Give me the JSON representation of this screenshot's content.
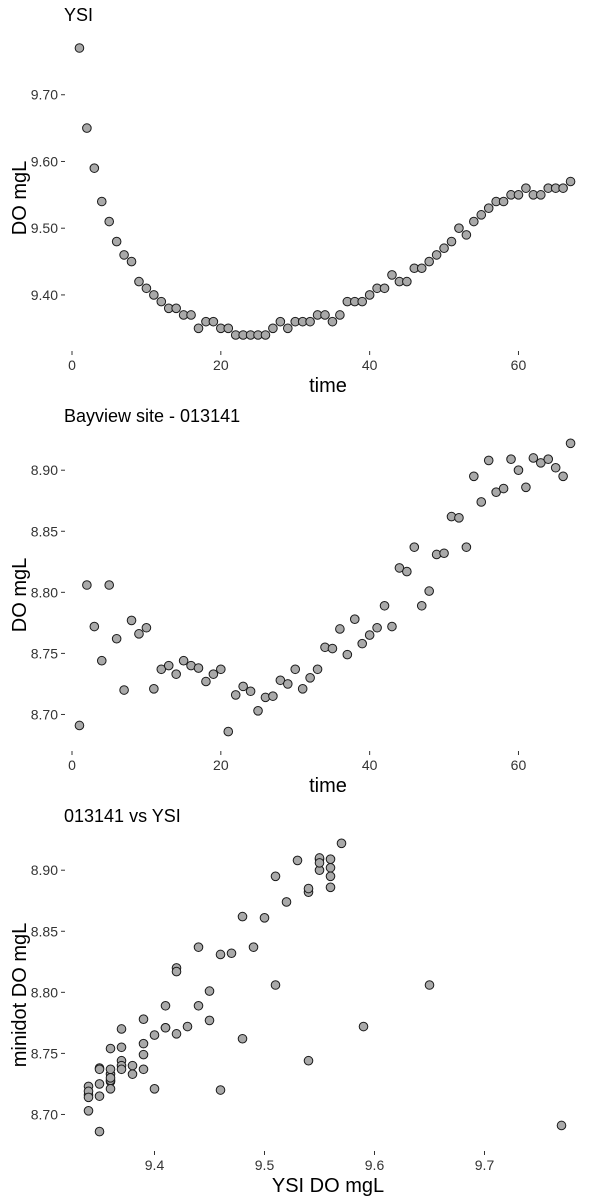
{
  "chart_data": [
    {
      "type": "scatter",
      "title": "YSI",
      "xlabel": "time",
      "ylabel": "DO mgL",
      "xlim": [
        0,
        68
      ],
      "ylim": [
        9.325,
        9.785
      ],
      "xticks": [
        0,
        20,
        40,
        60
      ],
      "yticks": [
        9.4,
        9.5,
        9.6,
        9.7
      ],
      "grid": false,
      "x": [
        1,
        2,
        3,
        4,
        5,
        6,
        7,
        8,
        9,
        10,
        11,
        12,
        13,
        14,
        15,
        16,
        17,
        18,
        19,
        20,
        21,
        22,
        23,
        24,
        25,
        26,
        27,
        28,
        29,
        30,
        31,
        32,
        33,
        34,
        35,
        36,
        37,
        38,
        39,
        40,
        41,
        42,
        43,
        44,
        45,
        46,
        47,
        48,
        49,
        50,
        51,
        52,
        53,
        54,
        55,
        56,
        57,
        58,
        59,
        60,
        61,
        62,
        63,
        64,
        65,
        66,
        67
      ],
      "y": [
        9.77,
        9.65,
        9.59,
        9.54,
        9.51,
        9.48,
        9.46,
        9.45,
        9.42,
        9.41,
        9.4,
        9.39,
        9.38,
        9.38,
        9.37,
        9.37,
        9.35,
        9.36,
        9.36,
        9.35,
        9.35,
        9.34,
        9.34,
        9.34,
        9.34,
        9.34,
        9.35,
        9.36,
        9.35,
        9.36,
        9.36,
        9.36,
        9.37,
        9.37,
        9.36,
        9.37,
        9.39,
        9.39,
        9.39,
        9.4,
        9.41,
        9.41,
        9.43,
        9.42,
        9.42,
        9.44,
        9.44,
        9.45,
        9.46,
        9.47,
        9.48,
        9.5,
        9.49,
        9.51,
        9.52,
        9.53,
        9.54,
        9.54,
        9.55,
        9.55,
        9.56,
        9.55,
        9.55,
        9.56,
        9.56,
        9.56,
        9.57
      ]
    },
    {
      "type": "scatter",
      "title": "Bayview site - 013141",
      "xlabel": "time",
      "ylabel": "DO mgL",
      "xlim": [
        0,
        68
      ],
      "ylim": [
        8.675,
        8.928
      ],
      "xticks": [
        0,
        20,
        40,
        60
      ],
      "yticks": [
        8.7,
        8.75,
        8.8,
        8.85,
        8.9
      ],
      "grid": false,
      "x": [
        1,
        2,
        3,
        4,
        5,
        6,
        7,
        8,
        9,
        10,
        11,
        12,
        13,
        14,
        15,
        16,
        17,
        18,
        19,
        20,
        21,
        22,
        23,
        24,
        25,
        26,
        27,
        28,
        29,
        30,
        31,
        32,
        33,
        34,
        35,
        36,
        37,
        38,
        39,
        40,
        41,
        42,
        43,
        44,
        45,
        46,
        47,
        48,
        49,
        50,
        51,
        52,
        53,
        54,
        55,
        56,
        57,
        58,
        59,
        60,
        61,
        62,
        63,
        64,
        65,
        66,
        67
      ],
      "y": [
        8.691,
        8.806,
        8.772,
        8.744,
        8.806,
        8.762,
        8.72,
        8.777,
        8.766,
        8.771,
        8.721,
        8.737,
        8.74,
        8.733,
        8.744,
        8.74,
        8.738,
        8.727,
        8.733,
        8.737,
        8.686,
        8.716,
        8.723,
        8.719,
        8.703,
        8.714,
        8.715,
        8.728,
        8.725,
        8.737,
        8.721,
        8.73,
        8.737,
        8.755,
        8.754,
        8.77,
        8.749,
        8.778,
        8.758,
        8.765,
        8.771,
        8.789,
        8.772,
        8.82,
        8.817,
        8.837,
        8.789,
        8.801,
        8.831,
        8.832,
        8.862,
        8.861,
        8.837,
        8.895,
        8.874,
        8.908,
        8.882,
        8.885,
        8.909,
        8.9,
        8.886,
        8.91,
        8.906,
        8.909,
        8.902,
        8.895,
        8.922
      ]
    },
    {
      "type": "scatter",
      "title": "013141 vs YSI",
      "xlabel": "YSI DO mgL",
      "ylabel": "minidot DO mgL",
      "xlim": [
        9.325,
        9.785
      ],
      "ylim": [
        8.675,
        8.928
      ],
      "xticks": [
        9.4,
        9.5,
        9.6,
        9.7
      ],
      "yticks": [
        8.7,
        8.75,
        8.8,
        8.85,
        8.9
      ],
      "grid": false
    }
  ]
}
